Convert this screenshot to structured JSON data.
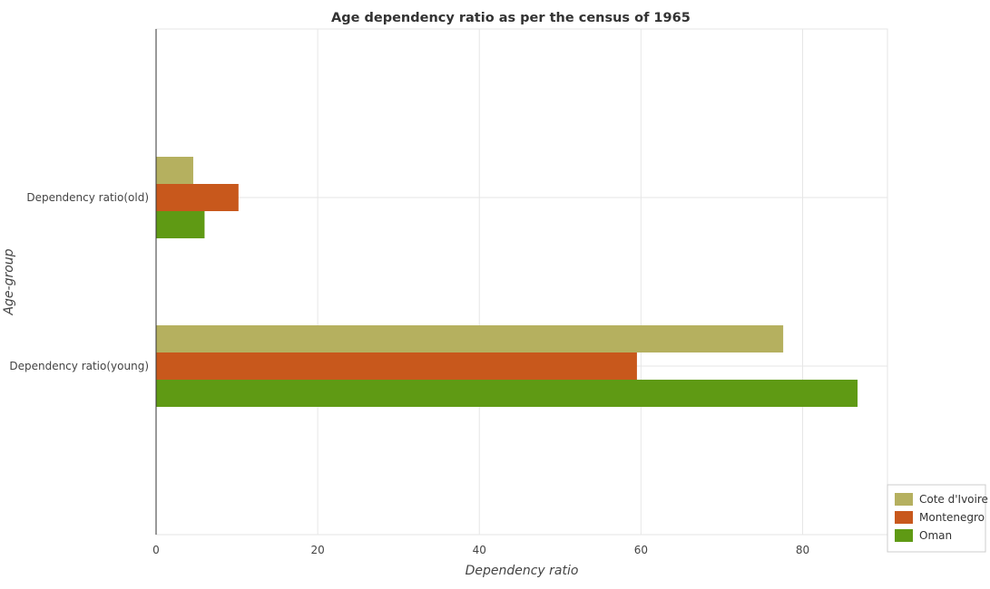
{
  "chart_data": {
    "type": "bar",
    "orientation": "horizontal",
    "title": "Age dependency ratio as per the census of 1965",
    "xlabel": "Dependency ratio",
    "ylabel": "Age-group",
    "categories": [
      "Dependency ratio(old)",
      "Dependency ratio(young)"
    ],
    "series": [
      {
        "name": "Cote d'Ivoire",
        "color": "#b5b05f",
        "values": [
          4.6,
          77.6
        ]
      },
      {
        "name": "Montenegro",
        "color": "#c8581c",
        "values": [
          10.2,
          59.5
        ]
      },
      {
        "name": "Oman",
        "color": "#5f9a14",
        "values": [
          6.0,
          86.8
        ]
      }
    ],
    "xlim": [
      0,
      90
    ],
    "xticks": [
      0,
      20,
      40,
      60,
      80
    ],
    "grid": true,
    "legend_position": "bottom-right"
  }
}
